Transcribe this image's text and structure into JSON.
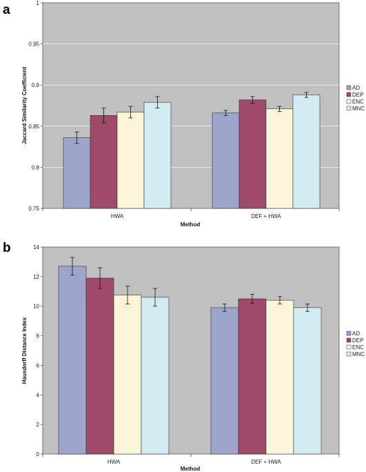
{
  "colors": {
    "plot_bg": "#c0c0c0",
    "gridline": "#ffffff",
    "AD": "#9da5cb",
    "DEP": "#9e4a68",
    "ENC": "#fbf4d9",
    "MNC": "#d3ebf2"
  },
  "chart_data": [
    {
      "panel_label": "a",
      "type": "bar",
      "xlabel": "Method",
      "ylabel": "Jaccard Similarity Coefficient",
      "categories": [
        "HWA",
        "DEF + HWA"
      ],
      "ylim": [
        0.75,
        1
      ],
      "yticks": [
        "0.75",
        "0.8",
        "0.85",
        "0.9",
        "0.95",
        "1"
      ],
      "ytick_values": [
        0.75,
        0.8,
        0.85,
        0.9,
        0.95,
        1
      ],
      "grid": true,
      "legend_position": "right",
      "series": [
        {
          "name": "AD",
          "color": "#9da5cb",
          "values": [
            0.836,
            0.866
          ],
          "errors": [
            0.007,
            0.003
          ]
        },
        {
          "name": "DEP",
          "color": "#9e4a68",
          "values": [
            0.863,
            0.882
          ],
          "errors": [
            0.009,
            0.004
          ]
        },
        {
          "name": "ENC",
          "color": "#fbf4d9",
          "values": [
            0.867,
            0.871
          ],
          "errors": [
            0.007,
            0.003
          ]
        },
        {
          "name": "MNC",
          "color": "#d3ebf2",
          "values": [
            0.879,
            0.888
          ],
          "errors": [
            0.007,
            0.003
          ]
        }
      ]
    },
    {
      "panel_label": "b",
      "type": "bar",
      "xlabel": "Method",
      "ylabel": "Hausdorff Distance Index",
      "categories": [
        "HWA",
        "DEF + HWA"
      ],
      "ylim": [
        0,
        14
      ],
      "yticks": [
        "0",
        "2",
        "4",
        "6",
        "8",
        "10",
        "12",
        "14"
      ],
      "ytick_values": [
        0,
        2,
        4,
        6,
        8,
        10,
        12,
        14
      ],
      "grid": false,
      "legend_position": "right",
      "series": [
        {
          "name": "AD",
          "color": "#9da5cb",
          "values": [
            12.7,
            9.9
          ],
          "errors": [
            0.6,
            0.25
          ]
        },
        {
          "name": "DEP",
          "color": "#9e4a68",
          "values": [
            11.9,
            10.5
          ],
          "errors": [
            0.7,
            0.3
          ]
        },
        {
          "name": "ENC",
          "color": "#fbf4d9",
          "values": [
            10.75,
            10.4
          ],
          "errors": [
            0.6,
            0.25
          ]
        },
        {
          "name": "MNC",
          "color": "#d3ebf2",
          "values": [
            10.6,
            9.9
          ],
          "errors": [
            0.6,
            0.25
          ]
        }
      ]
    }
  ]
}
